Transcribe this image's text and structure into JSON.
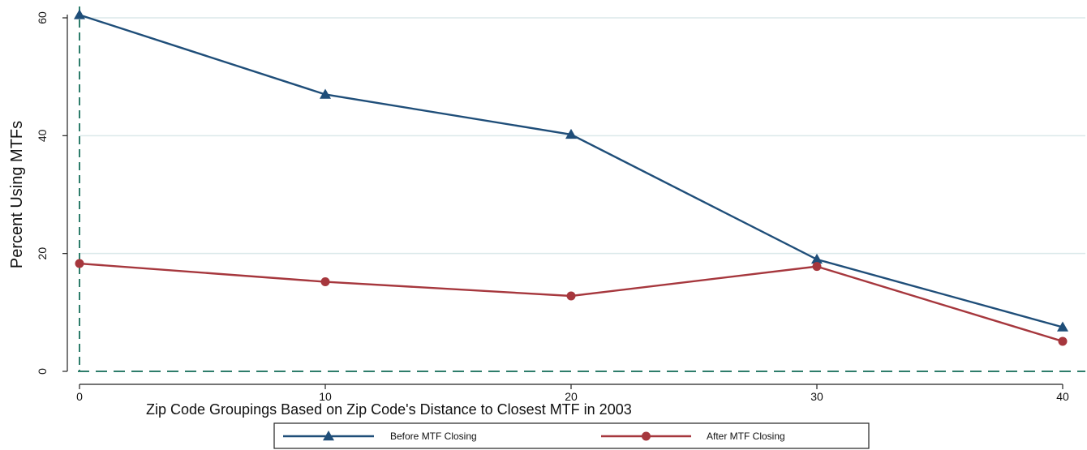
{
  "chart_data": {
    "type": "line",
    "ylabel": "Percent Using MTFs",
    "xlabel": "Zip Code Groupings Based on Zip Code's Distance to Closest MTF in 2003",
    "x": [
      0,
      10,
      20,
      30,
      40
    ],
    "xticks": [
      "0",
      "10",
      "20",
      "30",
      "40"
    ],
    "yticks": [
      "0",
      "20",
      "40",
      "60"
    ],
    "xlim": [
      0,
      40
    ],
    "ylim": [
      0,
      60
    ],
    "grid": true,
    "legend_position": "bottom",
    "series": [
      {
        "name": "Before MTF Closing",
        "values": [
          60.5,
          47,
          40.2,
          19,
          7.5
        ],
        "color": "#1f4e79",
        "marker": "triangle"
      },
      {
        "name": "After MTF Closing",
        "values": [
          18.3,
          15.2,
          12.8,
          17.8,
          5.1
        ],
        "color": "#a6373d",
        "marker": "circle"
      }
    ],
    "reference_lines_color": "#2e7d6b",
    "grid_color": "#dbe9ea"
  }
}
